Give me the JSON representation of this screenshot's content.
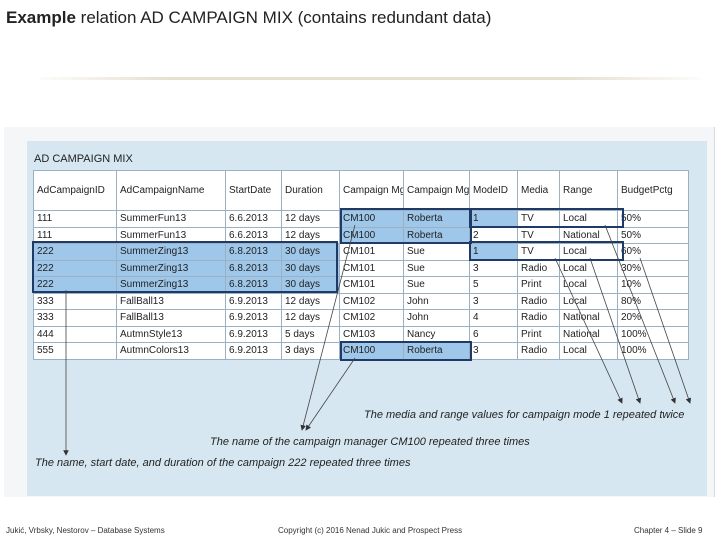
{
  "slide": {
    "title_bold": "Example",
    "title_rest": " relation AD CAMPAIGN MIX (contains redundant data)"
  },
  "table": {
    "title": "AD CAMPAIGN MIX",
    "headers": [
      "AdCampaignID",
      "AdCampaignName",
      "StartDate",
      "Duration",
      "Campaign MgrID",
      "Campaign MgrName",
      "ModeID",
      "Media",
      "Range",
      "BudgetPctg"
    ],
    "rows": [
      [
        "111",
        "SummerFun13",
        "6.6.2013",
        "12 days",
        "CM100",
        "Roberta",
        "1",
        "TV",
        "Local",
        "50%"
      ],
      [
        "111",
        "SummerFun13",
        "6.6.2013",
        "12 days",
        "CM100",
        "Roberta",
        "2",
        "TV",
        "National",
        "50%"
      ],
      [
        "222",
        "SummerZing13",
        "6.8.2013",
        "30 days",
        "CM101",
        "Sue",
        "1",
        "TV",
        "Local",
        "60%"
      ],
      [
        "222",
        "SummerZing13",
        "6.8.2013",
        "30 days",
        "CM101",
        "Sue",
        "3",
        "Radio",
        "Local",
        "30%"
      ],
      [
        "222",
        "SummerZing13",
        "6.8.2013",
        "30 days",
        "CM101",
        "Sue",
        "5",
        "Print",
        "Local",
        "10%"
      ],
      [
        "333",
        "FallBall13",
        "6.9.2013",
        "12 days",
        "CM102",
        "John",
        "3",
        "Radio",
        "Local",
        "80%"
      ],
      [
        "333",
        "FallBall13",
        "6.9.2013",
        "12 days",
        "CM102",
        "John",
        "4",
        "Radio",
        "National",
        "20%"
      ],
      [
        "444",
        "AutmnStyle13",
        "6.9.2013",
        "5 days",
        "CM103",
        "Nancy",
        "6",
        "Print",
        "National",
        "100%"
      ],
      [
        "555",
        "AutmnColors13",
        "6.9.2013",
        "3 days",
        "CM100",
        "Roberta",
        "3",
        "Radio",
        "Local",
        "100%"
      ]
    ]
  },
  "annotations": {
    "media_range": "The media and range values for campaign mode 1 repeated twice",
    "manager": "The name of the campaign manager CM100 repeated three times",
    "campaign": "The name, start date, and duration of the campaign 222 repeated three times"
  },
  "footer": {
    "left": "Jukić, Vrbsky, Nestorov – Database Systems",
    "center": "Copyright (c) 2016 Nenad Jukic and Prospect Press",
    "right": "Chapter 4 – Slide 9"
  },
  "colors": {
    "highlight": "#9fc7ea",
    "box_border": "#1f3a66",
    "panel": "#d7e7f1"
  }
}
